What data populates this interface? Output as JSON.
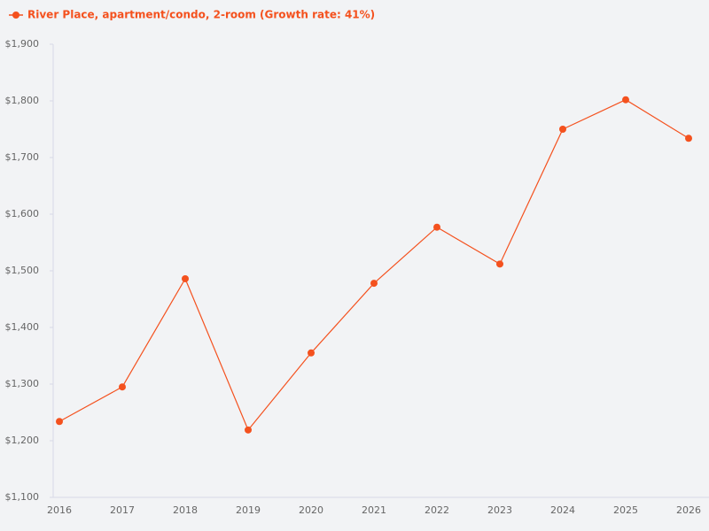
{
  "chart_data": {
    "type": "line",
    "categories": [
      "2016",
      "2017",
      "2018",
      "2019",
      "2020",
      "2021",
      "2022",
      "2023",
      "2024",
      "2025",
      "2026"
    ],
    "series": [
      {
        "name": "River Place, apartment/condo, 2-room (Growth rate: 41%)",
        "color": "#f4511e",
        "values": [
          1234,
          1295,
          1486,
          1219,
          1355,
          1478,
          1577,
          1512,
          1750,
          1802,
          1734
        ]
      }
    ],
    "ylim": [
      1100,
      1900
    ],
    "yticks": [
      {
        "value": 1100,
        "label": "$1,100"
      },
      {
        "value": 1200,
        "label": "$1,200"
      },
      {
        "value": 1300,
        "label": "$1,300"
      },
      {
        "value": 1400,
        "label": "$1,400"
      },
      {
        "value": 1500,
        "label": "$1,500"
      },
      {
        "value": 1600,
        "label": "$1,600"
      },
      {
        "value": 1700,
        "label": "$1,700"
      },
      {
        "value": 1800,
        "label": "$1,800"
      },
      {
        "value": 1900,
        "label": "$1,900"
      }
    ],
    "legend": "top-left",
    "grid": false
  }
}
